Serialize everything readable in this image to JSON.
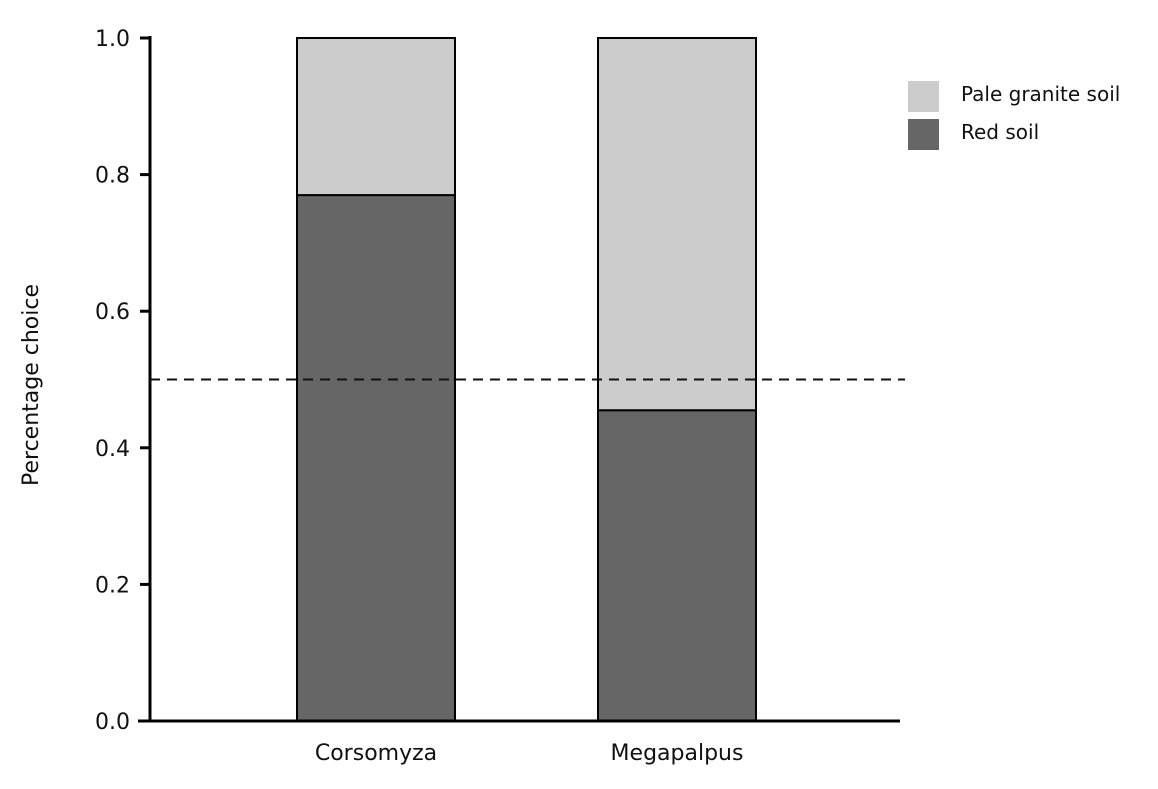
{
  "chart_data": {
    "type": "bar",
    "stacked": true,
    "categories": [
      "Corsomyza",
      "Megapalpus"
    ],
    "series": [
      {
        "name": "Red soil",
        "values": [
          0.77,
          0.455
        ],
        "color": "#666666"
      },
      {
        "name": "Pale granite soil",
        "values": [
          0.23,
          0.545
        ],
        "color": "#cccccc"
      }
    ],
    "ylabel": "Percentage choice",
    "xlabel": "",
    "ylim": [
      0,
      1.0
    ],
    "yticks": [
      "0.0",
      "0.2",
      "0.4",
      "0.6",
      "0.8",
      "1.0"
    ],
    "reference_line": {
      "y": 0.5,
      "style": "dashed"
    },
    "legend": {
      "position": "top-right",
      "entries": [
        {
          "label": "Pale granite soil",
          "color": "#cccccc"
        },
        {
          "label": "Red soil",
          "color": "#666666"
        }
      ]
    },
    "grid": false
  }
}
